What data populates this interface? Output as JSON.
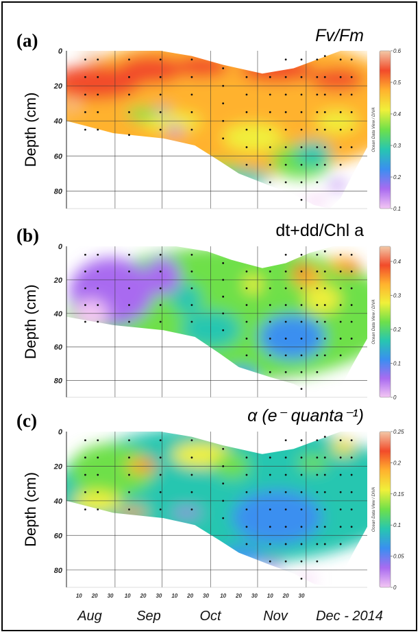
{
  "chart_data": [
    {
      "type": "heatmap",
      "panel": "(a)",
      "title": "Fv/Fm",
      "ylabel": "Depth (cm)",
      "yticks": [
        0,
        20,
        40,
        60,
        80
      ],
      "colorbar_ticks": [
        "0.6",
        "0.5",
        "0.4",
        "0.3",
        "0.2",
        "0.1"
      ],
      "watermark": "Ocean Data View / DIVA",
      "surface": [
        [
          0,
          0
        ],
        [
          60,
          0
        ],
        [
          80,
          3
        ],
        [
          100,
          8
        ],
        [
          125,
          13
        ],
        [
          145,
          10
        ],
        [
          160,
          5
        ],
        [
          175,
          0
        ],
        [
          192,
          0
        ]
      ],
      "bottom": [
        [
          0,
          40
        ],
        [
          30,
          47
        ],
        [
          62,
          50
        ],
        [
          82,
          54
        ],
        [
          98,
          63
        ],
        [
          110,
          70
        ],
        [
          130,
          77
        ],
        [
          145,
          82
        ],
        [
          158,
          88
        ],
        [
          168,
          90
        ],
        [
          175,
          84
        ],
        [
          183,
          70
        ],
        [
          192,
          55
        ]
      ],
      "samples": [
        [
          12,
          5
        ],
        [
          12,
          15
        ],
        [
          12,
          25
        ],
        [
          12,
          35
        ],
        [
          12,
          45
        ],
        [
          20,
          5
        ],
        [
          20,
          15
        ],
        [
          20,
          25
        ],
        [
          20,
          35
        ],
        [
          20,
          45
        ],
        [
          40,
          5
        ],
        [
          40,
          15
        ],
        [
          40,
          25
        ],
        [
          40,
          35
        ],
        [
          40,
          48
        ],
        [
          60,
          5
        ],
        [
          60,
          15
        ],
        [
          60,
          25
        ],
        [
          60,
          35
        ],
        [
          60,
          45
        ],
        [
          80,
          5
        ],
        [
          80,
          15
        ],
        [
          80,
          25
        ],
        [
          80,
          35
        ],
        [
          80,
          45
        ],
        [
          100,
          10
        ],
        [
          100,
          20
        ],
        [
          100,
          30
        ],
        [
          100,
          40
        ],
        [
          100,
          50
        ],
        [
          115,
          15
        ],
        [
          115,
          25
        ],
        [
          115,
          35
        ],
        [
          115,
          45
        ],
        [
          115,
          55
        ],
        [
          115,
          65
        ],
        [
          130,
          15
        ],
        [
          130,
          25
        ],
        [
          130,
          35
        ],
        [
          130,
          45
        ],
        [
          130,
          55
        ],
        [
          130,
          65
        ],
        [
          130,
          75
        ],
        [
          140,
          5
        ],
        [
          140,
          15
        ],
        [
          140,
          25
        ],
        [
          140,
          35
        ],
        [
          140,
          45
        ],
        [
          140,
          55
        ],
        [
          140,
          65
        ],
        [
          140,
          75
        ],
        [
          150,
          5
        ],
        [
          150,
          15
        ],
        [
          150,
          25
        ],
        [
          150,
          35
        ],
        [
          150,
          45
        ],
        [
          150,
          55
        ],
        [
          150,
          65
        ],
        [
          150,
          75
        ],
        [
          150,
          85
        ],
        [
          160,
          5
        ],
        [
          160,
          15
        ],
        [
          160,
          25
        ],
        [
          160,
          35
        ],
        [
          160,
          45
        ],
        [
          160,
          55
        ],
        [
          160,
          65
        ],
        [
          160,
          75
        ],
        [
          165,
          3
        ],
        [
          165,
          15
        ],
        [
          165,
          25
        ],
        [
          165,
          35
        ],
        [
          165,
          45
        ],
        [
          165,
          55
        ],
        [
          165,
          65
        ],
        [
          175,
          5
        ],
        [
          175,
          15
        ],
        [
          175,
          25
        ],
        [
          175,
          35
        ],
        [
          175,
          45
        ],
        [
          175,
          55
        ],
        [
          175,
          65
        ],
        [
          182,
          5
        ],
        [
          182,
          15
        ],
        [
          182,
          25
        ],
        [
          182,
          35
        ],
        [
          182,
          45
        ],
        [
          182,
          55
        ]
      ]
    },
    {
      "type": "heatmap",
      "panel": "(b)",
      "title": "dt+dd/Chl a",
      "ylabel": "Depth (cm)",
      "yticks": [
        0,
        20,
        40,
        60,
        80
      ],
      "colorbar_ticks": [
        "0.4",
        "0.3",
        "0.2",
        "0.1",
        "0"
      ],
      "watermark": "Ocean Data View / DIVA",
      "surface": [
        [
          0,
          0
        ],
        [
          70,
          0
        ],
        [
          90,
          3
        ],
        [
          105,
          8
        ],
        [
          125,
          13
        ],
        [
          140,
          10
        ],
        [
          155,
          4
        ],
        [
          170,
          0
        ],
        [
          192,
          0
        ]
      ],
      "bottom": [
        [
          0,
          42
        ],
        [
          30,
          47
        ],
        [
          62,
          50
        ],
        [
          82,
          54
        ],
        [
          98,
          64
        ],
        [
          110,
          72
        ],
        [
          130,
          78
        ],
        [
          145,
          82
        ],
        [
          158,
          88
        ],
        [
          168,
          90
        ],
        [
          175,
          84
        ],
        [
          183,
          70
        ],
        [
          192,
          55
        ]
      ],
      "samples": [
        [
          12,
          5
        ],
        [
          12,
          15
        ],
        [
          12,
          25
        ],
        [
          12,
          35
        ],
        [
          12,
          45
        ],
        [
          20,
          5
        ],
        [
          20,
          15
        ],
        [
          20,
          25
        ],
        [
          20,
          35
        ],
        [
          20,
          45
        ],
        [
          40,
          5
        ],
        [
          40,
          15
        ],
        [
          40,
          25
        ],
        [
          40,
          35
        ],
        [
          40,
          45
        ],
        [
          60,
          5
        ],
        [
          60,
          15
        ],
        [
          60,
          25
        ],
        [
          60,
          35
        ],
        [
          60,
          45
        ],
        [
          80,
          5
        ],
        [
          80,
          15
        ],
        [
          80,
          25
        ],
        [
          80,
          35
        ],
        [
          80,
          45
        ],
        [
          100,
          10
        ],
        [
          100,
          20
        ],
        [
          100,
          30
        ],
        [
          100,
          40
        ],
        [
          100,
          50
        ],
        [
          115,
          15
        ],
        [
          115,
          25
        ],
        [
          115,
          35
        ],
        [
          115,
          45
        ],
        [
          115,
          55
        ],
        [
          115,
          65
        ],
        [
          130,
          15
        ],
        [
          130,
          25
        ],
        [
          130,
          35
        ],
        [
          130,
          45
        ],
        [
          130,
          55
        ],
        [
          130,
          65
        ],
        [
          130,
          75
        ],
        [
          140,
          5
        ],
        [
          140,
          15
        ],
        [
          140,
          25
        ],
        [
          140,
          35
        ],
        [
          140,
          45
        ],
        [
          140,
          55
        ],
        [
          140,
          65
        ],
        [
          140,
          75
        ],
        [
          150,
          5
        ],
        [
          150,
          15
        ],
        [
          150,
          25
        ],
        [
          150,
          35
        ],
        [
          150,
          45
        ],
        [
          150,
          55
        ],
        [
          150,
          65
        ],
        [
          150,
          75
        ],
        [
          150,
          85
        ],
        [
          160,
          5
        ],
        [
          160,
          15
        ],
        [
          160,
          25
        ],
        [
          160,
          35
        ],
        [
          160,
          45
        ],
        [
          160,
          55
        ],
        [
          160,
          65
        ],
        [
          160,
          75
        ],
        [
          165,
          3
        ],
        [
          165,
          15
        ],
        [
          165,
          25
        ],
        [
          165,
          35
        ],
        [
          165,
          45
        ],
        [
          165,
          55
        ],
        [
          165,
          65
        ],
        [
          175,
          5
        ],
        [
          175,
          15
        ],
        [
          175,
          25
        ],
        [
          175,
          35
        ],
        [
          175,
          45
        ],
        [
          175,
          55
        ],
        [
          175,
          65
        ],
        [
          182,
          5
        ],
        [
          182,
          15
        ],
        [
          182,
          25
        ],
        [
          182,
          35
        ],
        [
          182,
          45
        ],
        [
          182,
          55
        ]
      ]
    },
    {
      "type": "heatmap",
      "panel": "(c)",
      "title": "α (e⁻ quanta⁻¹)",
      "ylabel": "Depth (cm)",
      "yticks": [
        0,
        20,
        40,
        60,
        80
      ],
      "xticks": [
        "10",
        "20",
        "30",
        "10",
        "20",
        "30",
        "10",
        "20",
        "30",
        "10",
        "20",
        "30",
        "10",
        "20",
        "30"
      ],
      "xlabel_months": [
        "Aug",
        "Sep",
        "Oct",
        "Nov",
        "Dec - 2014"
      ],
      "colorbar_ticks": [
        "0.25",
        "0.2",
        "0.15",
        "0.1",
        "0.05",
        "0"
      ],
      "watermark": "Ocean Data View / DIVA",
      "surface": [
        [
          0,
          0
        ],
        [
          60,
          0
        ],
        [
          80,
          3
        ],
        [
          100,
          8
        ],
        [
          125,
          13
        ],
        [
          145,
          10
        ],
        [
          160,
          5
        ],
        [
          175,
          0
        ],
        [
          192,
          0
        ]
      ],
      "bottom": [
        [
          0,
          40
        ],
        [
          30,
          47
        ],
        [
          62,
          50
        ],
        [
          82,
          54
        ],
        [
          98,
          63
        ],
        [
          110,
          70
        ],
        [
          130,
          77
        ],
        [
          145,
          82
        ],
        [
          158,
          88
        ],
        [
          168,
          90
        ],
        [
          175,
          84
        ],
        [
          183,
          70
        ],
        [
          192,
          55
        ]
      ],
      "samples": [
        [
          12,
          5
        ],
        [
          12,
          15
        ],
        [
          12,
          25
        ],
        [
          12,
          35
        ],
        [
          12,
          45
        ],
        [
          20,
          5
        ],
        [
          20,
          15
        ],
        [
          20,
          25
        ],
        [
          20,
          35
        ],
        [
          20,
          45
        ],
        [
          40,
          5
        ],
        [
          40,
          15
        ],
        [
          40,
          25
        ],
        [
          40,
          35
        ],
        [
          40,
          45
        ],
        [
          60,
          5
        ],
        [
          60,
          15
        ],
        [
          60,
          25
        ],
        [
          60,
          35
        ],
        [
          60,
          45
        ],
        [
          80,
          5
        ],
        [
          80,
          15
        ],
        [
          80,
          25
        ],
        [
          80,
          35
        ],
        [
          80,
          45
        ],
        [
          100,
          10
        ],
        [
          100,
          20
        ],
        [
          100,
          30
        ],
        [
          100,
          40
        ],
        [
          100,
          50
        ],
        [
          115,
          15
        ],
        [
          115,
          25
        ],
        [
          115,
          35
        ],
        [
          115,
          45
        ],
        [
          115,
          55
        ],
        [
          115,
          65
        ],
        [
          130,
          15
        ],
        [
          130,
          25
        ],
        [
          130,
          35
        ],
        [
          130,
          45
        ],
        [
          130,
          55
        ],
        [
          130,
          65
        ],
        [
          130,
          75
        ],
        [
          140,
          5
        ],
        [
          140,
          15
        ],
        [
          140,
          25
        ],
        [
          140,
          35
        ],
        [
          140,
          45
        ],
        [
          140,
          55
        ],
        [
          140,
          65
        ],
        [
          140,
          75
        ],
        [
          150,
          5
        ],
        [
          150,
          15
        ],
        [
          150,
          25
        ],
        [
          150,
          35
        ],
        [
          150,
          45
        ],
        [
          150,
          55
        ],
        [
          150,
          65
        ],
        [
          150,
          75
        ],
        [
          150,
          85
        ],
        [
          160,
          5
        ],
        [
          160,
          15
        ],
        [
          160,
          25
        ],
        [
          160,
          35
        ],
        [
          160,
          45
        ],
        [
          160,
          55
        ],
        [
          160,
          65
        ],
        [
          160,
          75
        ],
        [
          165,
          3
        ],
        [
          165,
          15
        ],
        [
          165,
          25
        ],
        [
          165,
          35
        ],
        [
          165,
          45
        ],
        [
          165,
          55
        ],
        [
          165,
          65
        ],
        [
          175,
          5
        ],
        [
          175,
          15
        ],
        [
          175,
          25
        ],
        [
          175,
          35
        ],
        [
          175,
          45
        ],
        [
          175,
          55
        ],
        [
          175,
          65
        ],
        [
          182,
          5
        ],
        [
          182,
          15
        ],
        [
          182,
          25
        ],
        [
          182,
          35
        ],
        [
          182,
          45
        ],
        [
          182,
          55
        ]
      ]
    }
  ],
  "colors": {
    "colorbar_stops": [
      "#f2c9a8",
      "#f24b2a",
      "#ffb22e",
      "#f0f03a",
      "#6ee04a",
      "#27c6b0",
      "#3a8ff0",
      "#a96bf0",
      "#f3c6f3"
    ]
  }
}
